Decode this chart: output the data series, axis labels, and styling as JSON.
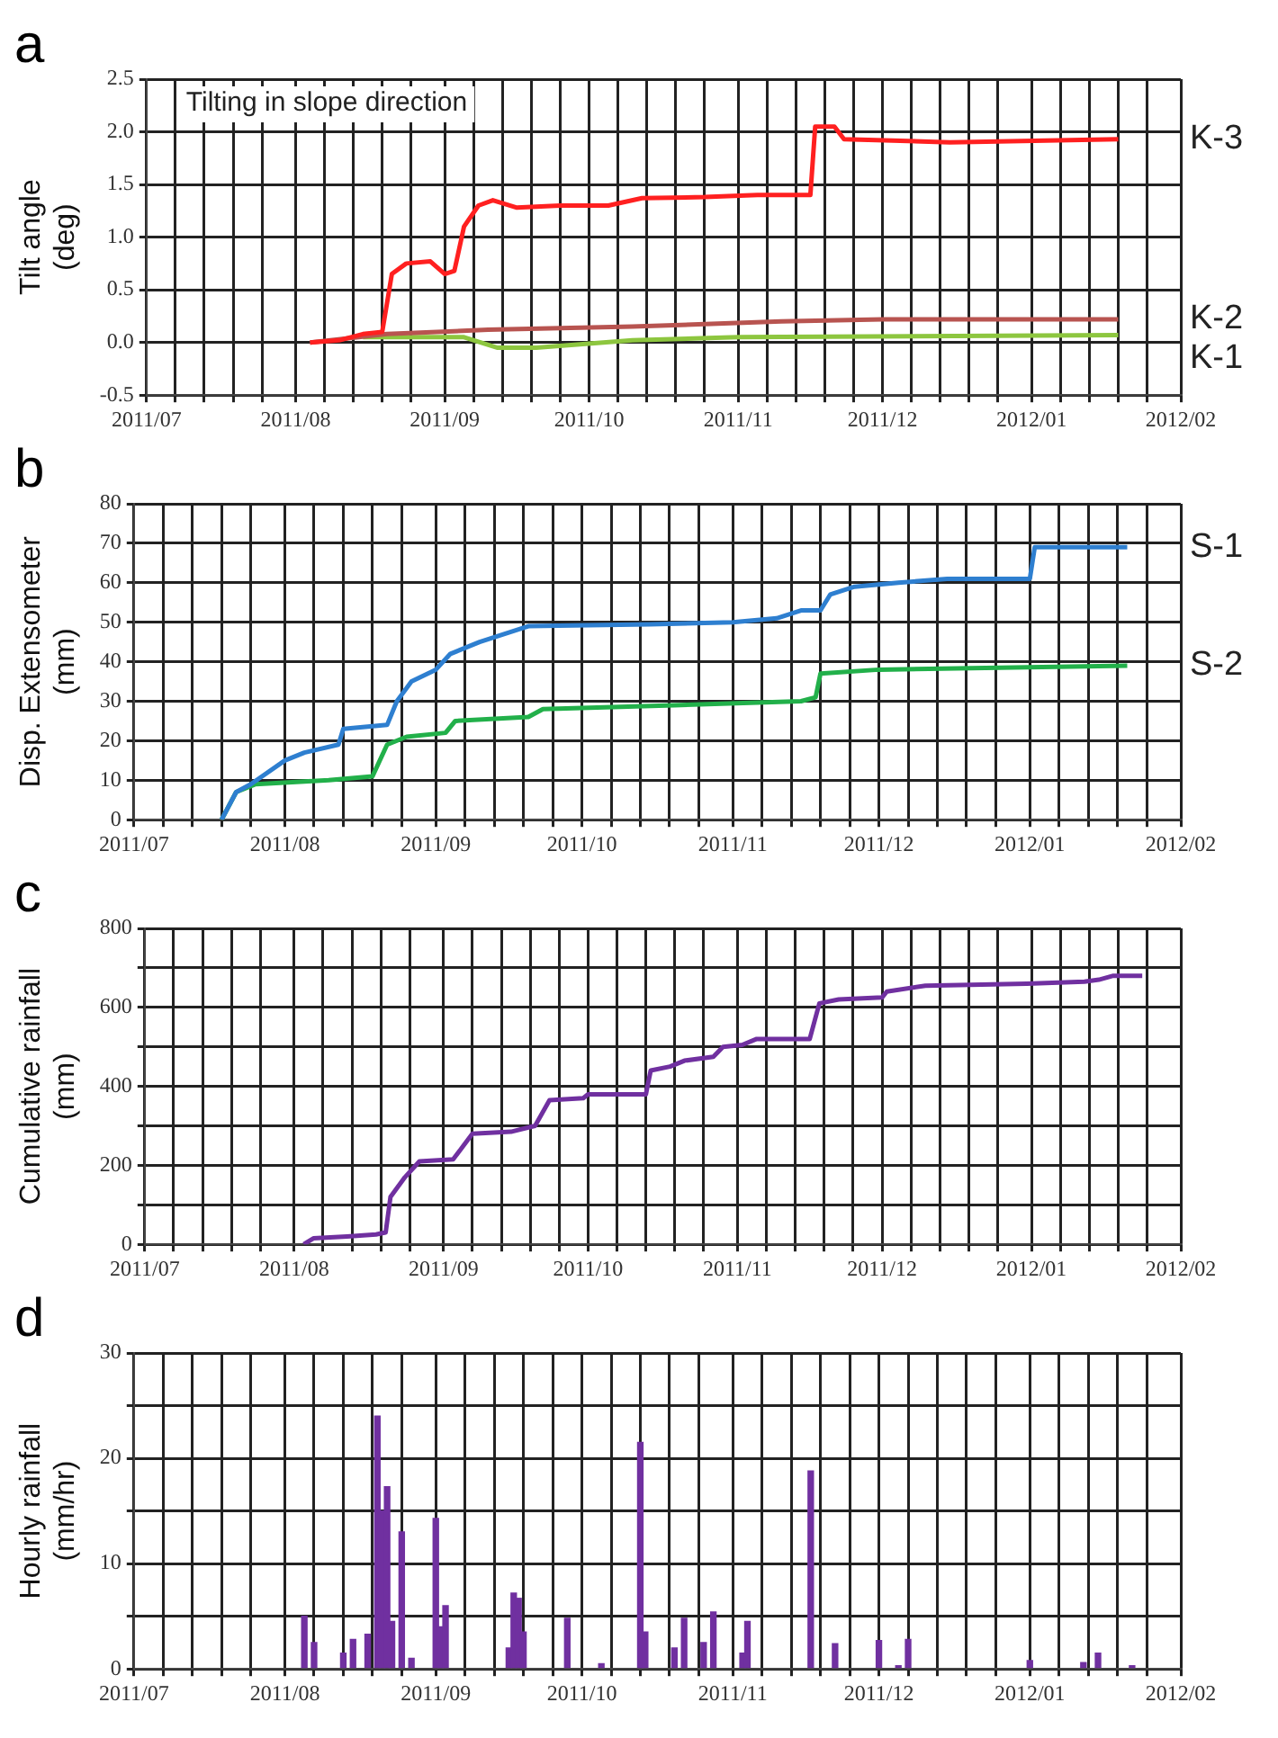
{
  "chart_data": [
    {
      "type": "line",
      "title": "a",
      "ylabel": "Tilt angle (deg)",
      "annotations": [
        "Tilting in slope direction"
      ],
      "grid": true,
      "legend": false,
      "marker": "none",
      "xlim": [
        "2011-07-01",
        "2012-02-01"
      ],
      "xticks": [
        {
          "value": "2011-07-01",
          "label": "2011/07"
        },
        {
          "value": "2011-07-07",
          "label": null
        },
        {
          "value": "2011-07-13",
          "label": null
        },
        {
          "value": "2011-07-19",
          "label": null
        },
        {
          "value": "2011-07-25",
          "label": null
        },
        {
          "value": "2011-08-01",
          "label": "2011/08"
        },
        {
          "value": "2011-08-07",
          "label": null
        },
        {
          "value": "2011-08-13",
          "label": null
        },
        {
          "value": "2011-08-19",
          "label": null
        },
        {
          "value": "2011-08-25",
          "label": null
        },
        {
          "value": "2011-09-01",
          "label": "2011/09"
        },
        {
          "value": "2011-09-07",
          "label": null
        },
        {
          "value": "2011-09-13",
          "label": null
        },
        {
          "value": "2011-09-19",
          "label": null
        },
        {
          "value": "2011-09-25",
          "label": null
        },
        {
          "value": "2011-10-01",
          "label": "2011/10"
        },
        {
          "value": "2011-10-07",
          "label": null
        },
        {
          "value": "2011-10-13",
          "label": null
        },
        {
          "value": "2011-10-19",
          "label": null
        },
        {
          "value": "2011-10-25",
          "label": null
        },
        {
          "value": "2011-11-01",
          "label": "2011/11"
        },
        {
          "value": "2011-11-07",
          "label": null
        },
        {
          "value": "2011-11-13",
          "label": null
        },
        {
          "value": "2011-11-19",
          "label": null
        },
        {
          "value": "2011-11-25",
          "label": null
        },
        {
          "value": "2011-12-01",
          "label": "2011/12"
        },
        {
          "value": "2011-12-07",
          "label": null
        },
        {
          "value": "2011-12-13",
          "label": null
        },
        {
          "value": "2011-12-19",
          "label": null
        },
        {
          "value": "2011-12-25",
          "label": null
        },
        {
          "value": "2012-01-01",
          "label": "2012/01"
        },
        {
          "value": "2012-01-07",
          "label": null
        },
        {
          "value": "2012-01-13",
          "label": null
        },
        {
          "value": "2012-01-19",
          "label": null
        },
        {
          "value": "2012-01-25",
          "label": null
        },
        {
          "value": "2012-02-01",
          "label": "2012/02"
        }
      ],
      "ylim": [
        -0.5,
        2.5
      ],
      "yticks": [
        {
          "value": -0.5,
          "label": "-0.5"
        },
        {
          "value": 0,
          "label": "0.0"
        },
        {
          "value": 0.5,
          "label": "0.5"
        },
        {
          "value": 1,
          "label": "1.0"
        },
        {
          "value": 1.5,
          "label": "1.5"
        },
        {
          "value": 2,
          "label": "2.0"
        },
        {
          "value": 2.5,
          "label": "2.5"
        }
      ],
      "series": [
        {
          "name": "K-3",
          "color": "#ff2020",
          "x": [
            "2011-08-04",
            "2011-08-10",
            "2011-08-15",
            "2011-08-19",
            "2011-08-21",
            "2011-08-24",
            "2011-08-29",
            "2011-09-01",
            "2011-09-03",
            "2011-09-05",
            "2011-09-08",
            "2011-09-11",
            "2011-09-16",
            "2011-09-25",
            "2011-10-05",
            "2011-10-12",
            "2011-10-25",
            "2011-11-05",
            "2011-11-16",
            "2011-11-17",
            "2011-11-21",
            "2011-11-23",
            "2011-12-15",
            "2012-01-19"
          ],
          "values": [
            0,
            0.02,
            0.08,
            0.1,
            0.65,
            0.75,
            0.77,
            0.65,
            0.68,
            1.1,
            1.3,
            1.35,
            1.28,
            1.3,
            1.3,
            1.37,
            1.38,
            1.4,
            1.4,
            2.05,
            2.05,
            1.93,
            1.9,
            1.93
          ]
        },
        {
          "name": "K-2",
          "color": "#b85450",
          "x": [
            "2011-08-04",
            "2011-08-20",
            "2011-09-10",
            "2011-10-10",
            "2011-11-10",
            "2011-12-01",
            "2012-01-19"
          ],
          "values": [
            0,
            0.08,
            0.12,
            0.15,
            0.2,
            0.22,
            0.22
          ]
        },
        {
          "name": "K-1",
          "color": "#8dc63f",
          "x": [
            "2011-08-15",
            "2011-09-05",
            "2011-09-12",
            "2011-09-20",
            "2011-10-10",
            "2011-11-01",
            "2012-01-19"
          ],
          "values": [
            0.05,
            0.05,
            -0.05,
            -0.05,
            0.02,
            0.05,
            0.07
          ]
        }
      ]
    },
    {
      "type": "line",
      "title": "b",
      "ylabel": "Disp. Extensometer (mm)",
      "grid": true,
      "legend": false,
      "marker": "none",
      "xlim": [
        "2011-07-01",
        "2012-02-01"
      ],
      "xticks": [
        {
          "value": "2011-07-01",
          "label": "2011/07"
        },
        {
          "value": "2011-07-07",
          "label": null
        },
        {
          "value": "2011-07-13",
          "label": null
        },
        {
          "value": "2011-07-19",
          "label": null
        },
        {
          "value": "2011-07-25",
          "label": null
        },
        {
          "value": "2011-08-01",
          "label": "2011/08"
        },
        {
          "value": "2011-08-07",
          "label": null
        },
        {
          "value": "2011-08-13",
          "label": null
        },
        {
          "value": "2011-08-19",
          "label": null
        },
        {
          "value": "2011-08-25",
          "label": null
        },
        {
          "value": "2011-09-01",
          "label": "2011/09"
        },
        {
          "value": "2011-09-07",
          "label": null
        },
        {
          "value": "2011-09-13",
          "label": null
        },
        {
          "value": "2011-09-19",
          "label": null
        },
        {
          "value": "2011-09-25",
          "label": null
        },
        {
          "value": "2011-10-01",
          "label": "2011/10"
        },
        {
          "value": "2011-10-07",
          "label": null
        },
        {
          "value": "2011-10-13",
          "label": null
        },
        {
          "value": "2011-10-19",
          "label": null
        },
        {
          "value": "2011-10-25",
          "label": null
        },
        {
          "value": "2011-11-01",
          "label": "2011/11"
        },
        {
          "value": "2011-11-07",
          "label": null
        },
        {
          "value": "2011-11-13",
          "label": null
        },
        {
          "value": "2011-11-19",
          "label": null
        },
        {
          "value": "2011-11-25",
          "label": null
        },
        {
          "value": "2011-12-01",
          "label": "2011/12"
        },
        {
          "value": "2011-12-07",
          "label": null
        },
        {
          "value": "2011-12-13",
          "label": null
        },
        {
          "value": "2011-12-19",
          "label": null
        },
        {
          "value": "2011-12-25",
          "label": null
        },
        {
          "value": "2012-01-01",
          "label": "2012/01"
        },
        {
          "value": "2012-01-07",
          "label": null
        },
        {
          "value": "2012-01-13",
          "label": null
        },
        {
          "value": "2012-01-19",
          "label": null
        },
        {
          "value": "2012-01-25",
          "label": null
        },
        {
          "value": "2012-02-01",
          "label": "2012/02"
        }
      ],
      "ylim": [
        0,
        80
      ],
      "yticks": [
        0,
        10,
        20,
        30,
        40,
        50,
        60,
        70,
        80
      ],
      "series": [
        {
          "name": "S-1",
          "color": "#2e7fd0",
          "x": [
            "2011-07-19",
            "2011-07-22",
            "2011-07-25",
            "2011-08-01",
            "2011-08-05",
            "2011-08-12",
            "2011-08-13",
            "2011-08-22",
            "2011-08-24",
            "2011-08-27",
            "2011-09-01",
            "2011-09-04",
            "2011-09-10",
            "2011-09-15",
            "2011-09-20",
            "2011-10-15",
            "2011-11-01",
            "2011-11-10",
            "2011-11-15",
            "2011-11-19",
            "2011-11-21",
            "2011-11-26",
            "2011-12-05",
            "2011-12-15",
            "2012-01-01",
            "2012-01-02",
            "2012-01-21"
          ],
          "values": [
            0,
            7,
            9,
            15,
            17,
            19,
            23,
            24,
            30,
            35,
            38,
            42,
            45,
            47,
            49,
            49.5,
            50,
            51,
            53,
            53,
            57,
            59,
            60,
            61,
            61,
            69,
            69
          ]
        },
        {
          "name": "S-2",
          "color": "#22b04a",
          "x": [
            "2011-07-19",
            "2011-07-22",
            "2011-07-26",
            "2011-08-10",
            "2011-08-19",
            "2011-08-22",
            "2011-08-26",
            "2011-09-03",
            "2011-09-05",
            "2011-09-20",
            "2011-09-23",
            "2011-10-20",
            "2011-11-15",
            "2011-11-18",
            "2011-11-19",
            "2011-12-01",
            "2012-01-21"
          ],
          "values": [
            0,
            7,
            9,
            10,
            11,
            19,
            21,
            22,
            25,
            26,
            28,
            29,
            30,
            31,
            37,
            38,
            39
          ]
        }
      ]
    },
    {
      "type": "line",
      "title": "c",
      "ylabel": "Cumulative rainfall (mm)",
      "grid": true,
      "legend": false,
      "marker": "none",
      "xlim": [
        "2011-07-01",
        "2012-02-01"
      ],
      "xticks": [
        {
          "value": "2011-07-01",
          "label": "2011/07"
        },
        {
          "value": "2011-07-07",
          "label": null
        },
        {
          "value": "2011-07-13",
          "label": null
        },
        {
          "value": "2011-07-19",
          "label": null
        },
        {
          "value": "2011-07-25",
          "label": null
        },
        {
          "value": "2011-08-01",
          "label": "2011/08"
        },
        {
          "value": "2011-08-07",
          "label": null
        },
        {
          "value": "2011-08-13",
          "label": null
        },
        {
          "value": "2011-08-19",
          "label": null
        },
        {
          "value": "2011-08-25",
          "label": null
        },
        {
          "value": "2011-09-01",
          "label": "2011/09"
        },
        {
          "value": "2011-09-07",
          "label": null
        },
        {
          "value": "2011-09-13",
          "label": null
        },
        {
          "value": "2011-09-19",
          "label": null
        },
        {
          "value": "2011-09-25",
          "label": null
        },
        {
          "value": "2011-10-01",
          "label": "2011/10"
        },
        {
          "value": "2011-10-07",
          "label": null
        },
        {
          "value": "2011-10-13",
          "label": null
        },
        {
          "value": "2011-10-19",
          "label": null
        },
        {
          "value": "2011-10-25",
          "label": null
        },
        {
          "value": "2011-11-01",
          "label": "2011/11"
        },
        {
          "value": "2011-11-07",
          "label": null
        },
        {
          "value": "2011-11-13",
          "label": null
        },
        {
          "value": "2011-11-19",
          "label": null
        },
        {
          "value": "2011-11-25",
          "label": null
        },
        {
          "value": "2011-12-01",
          "label": "2011/12"
        },
        {
          "value": "2011-12-07",
          "label": null
        },
        {
          "value": "2011-12-13",
          "label": null
        },
        {
          "value": "2011-12-19",
          "label": null
        },
        {
          "value": "2011-12-25",
          "label": null
        },
        {
          "value": "2012-01-01",
          "label": "2012/01"
        },
        {
          "value": "2012-01-07",
          "label": null
        },
        {
          "value": "2012-01-13",
          "label": null
        },
        {
          "value": "2012-01-19",
          "label": null
        },
        {
          "value": "2012-01-25",
          "label": null
        },
        {
          "value": "2012-02-01",
          "label": "2012/02"
        }
      ],
      "ylim": [
        0,
        800
      ],
      "yticks": [
        0,
        {
          "value": 100,
          "label": null
        },
        200,
        {
          "value": 300,
          "label": null
        },
        400,
        {
          "value": 500,
          "label": null
        },
        600,
        {
          "value": 700,
          "label": null
        },
        800
      ],
      "series": [
        {
          "color": "#7030a0",
          "x": [
            "2011-08-03",
            "2011-08-05",
            "2011-08-12",
            "2011-08-18",
            "2011-08-20",
            "2011-08-21",
            "2011-08-24",
            "2011-08-27",
            "2011-09-03",
            "2011-09-07",
            "2011-09-15",
            "2011-09-20",
            "2011-09-23",
            "2011-09-30",
            "2011-10-01",
            "2011-10-13",
            "2011-10-14",
            "2011-10-18",
            "2011-10-21",
            "2011-10-27",
            "2011-10-29",
            "2011-11-02",
            "2011-11-05",
            "2011-11-16",
            "2011-11-18",
            "2011-11-22",
            "2011-12-01",
            "2011-12-02",
            "2011-12-10",
            "2011-12-31",
            "2012-01-12",
            "2012-01-15",
            "2012-01-18",
            "2012-01-24"
          ],
          "values": [
            0,
            15,
            20,
            25,
            30,
            120,
            170,
            210,
            215,
            280,
            285,
            300,
            365,
            370,
            380,
            380,
            440,
            450,
            465,
            475,
            500,
            505,
            520,
            520,
            610,
            620,
            625,
            640,
            655,
            660,
            665,
            670,
            680,
            680
          ]
        }
      ]
    },
    {
      "type": "bar",
      "title": "d",
      "ylabel": "Hourly rainfall (mm/hr)",
      "grid": true,
      "legend": false,
      "xlim": [
        "2011-07-01",
        "2012-02-01"
      ],
      "xticks": [
        {
          "value": "2011-07-01",
          "label": "2011/07"
        },
        {
          "value": "2011-07-07",
          "label": null
        },
        {
          "value": "2011-07-13",
          "label": null
        },
        {
          "value": "2011-07-19",
          "label": null
        },
        {
          "value": "2011-07-25",
          "label": null
        },
        {
          "value": "2011-08-01",
          "label": "2011/08"
        },
        {
          "value": "2011-08-07",
          "label": null
        },
        {
          "value": "2011-08-13",
          "label": null
        },
        {
          "value": "2011-08-19",
          "label": null
        },
        {
          "value": "2011-08-25",
          "label": null
        },
        {
          "value": "2011-09-01",
          "label": "2011/09"
        },
        {
          "value": "2011-09-07",
          "label": null
        },
        {
          "value": "2011-09-13",
          "label": null
        },
        {
          "value": "2011-09-19",
          "label": null
        },
        {
          "value": "2011-09-25",
          "label": null
        },
        {
          "value": "2011-10-01",
          "label": "2011/10"
        },
        {
          "value": "2011-10-07",
          "label": null
        },
        {
          "value": "2011-10-13",
          "label": null
        },
        {
          "value": "2011-10-19",
          "label": null
        },
        {
          "value": "2011-10-25",
          "label": null
        },
        {
          "value": "2011-11-01",
          "label": "2011/11"
        },
        {
          "value": "2011-11-07",
          "label": null
        },
        {
          "value": "2011-11-13",
          "label": null
        },
        {
          "value": "2011-11-19",
          "label": null
        },
        {
          "value": "2011-11-25",
          "label": null
        },
        {
          "value": "2011-12-01",
          "label": "2011/12"
        },
        {
          "value": "2011-12-07",
          "label": null
        },
        {
          "value": "2011-12-13",
          "label": null
        },
        {
          "value": "2011-12-19",
          "label": null
        },
        {
          "value": "2011-12-25",
          "label": null
        },
        {
          "value": "2012-01-01",
          "label": "2012/01"
        },
        {
          "value": "2012-01-07",
          "label": null
        },
        {
          "value": "2012-01-13",
          "label": null
        },
        {
          "value": "2012-01-19",
          "label": null
        },
        {
          "value": "2012-01-25",
          "label": null
        },
        {
          "value": "2012-02-01",
          "label": "2012/02"
        }
      ],
      "ylim": [
        0,
        30
      ],
      "yticks": [
        0,
        {
          "value": 5,
          "label": null
        },
        10,
        {
          "value": 15,
          "label": null
        },
        20,
        {
          "value": 25,
          "label": null
        },
        30
      ],
      "series": [
        {
          "color": "#7030a0",
          "x": [
            "2011-08-05",
            "2011-08-07",
            "2011-08-13",
            "2011-08-15",
            "2011-08-18",
            "2011-08-20",
            "2011-08-21",
            "2011-08-22",
            "2011-08-23",
            "2011-08-25",
            "2011-08-27",
            "2011-09-01",
            "2011-09-02",
            "2011-09-03",
            "2011-09-16",
            "2011-09-17",
            "2011-09-18",
            "2011-09-19",
            "2011-09-28",
            "2011-10-05",
            "2011-10-13",
            "2011-10-14",
            "2011-10-20",
            "2011-10-22",
            "2011-10-26",
            "2011-10-28",
            "2011-11-03",
            "2011-11-04",
            "2011-11-17",
            "2011-11-22",
            "2011-12-01",
            "2011-12-05",
            "2011-12-07",
            "2012-01-01",
            "2012-01-12",
            "2012-01-15",
            "2012-01-22"
          ],
          "values": [
            5,
            2.5,
            1.5,
            2.8,
            3.3,
            24,
            15,
            17.3,
            4.5,
            13,
            1,
            14.3,
            4,
            6,
            2,
            7.2,
            6.7,
            3.5,
            4.8,
            0.5,
            21.5,
            3.5,
            2,
            4.8,
            2.5,
            5.4,
            1.5,
            4.5,
            18.8,
            2.4,
            2.7,
            0.3,
            2.8,
            0.8,
            0.6,
            1.5,
            0.3
          ]
        }
      ]
    }
  ]
}
